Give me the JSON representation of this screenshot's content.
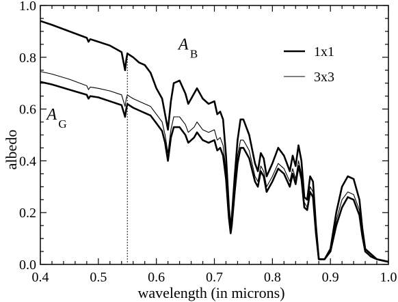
{
  "chart_data": {
    "type": "line",
    "xlabel": "wavelength (in microns)",
    "ylabel": "albedo",
    "xlim": [
      0.4,
      1.0
    ],
    "ylim": [
      0.0,
      1.0
    ],
    "x_ticks": [
      0.4,
      0.5,
      0.6,
      0.7,
      0.8,
      0.9,
      1.0
    ],
    "x_tick_labels": [
      "0.4",
      "0.5",
      "0.6",
      "0.7",
      "0.8",
      "0.9",
      "1.0"
    ],
    "y_ticks": [
      0.0,
      0.2,
      0.4,
      0.6,
      0.8,
      1.0
    ],
    "y_tick_labels": [
      "0.0",
      "0.2",
      "0.4",
      "0.6",
      "0.8",
      "1.0"
    ],
    "grid": false,
    "legend_position": "top-right",
    "reference_line": {
      "x": 0.55,
      "style": "dotted"
    },
    "annotations": [
      {
        "main": "A",
        "sub": "B",
        "x": 0.638,
        "y": 0.83
      },
      {
        "main": "A",
        "sub": "G",
        "x": 0.411,
        "y": 0.56
      }
    ],
    "series": [
      {
        "name": "1x1",
        "curve": "A_B",
        "style": "thick",
        "x": [
          0.4,
          0.42,
          0.45,
          0.48,
          0.483,
          0.486,
          0.5,
          0.52,
          0.54,
          0.546,
          0.548,
          0.55,
          0.553,
          0.56,
          0.57,
          0.58,
          0.59,
          0.6,
          0.61,
          0.615,
          0.62,
          0.625,
          0.63,
          0.64,
          0.65,
          0.655,
          0.66,
          0.665,
          0.67,
          0.68,
          0.69,
          0.7,
          0.705,
          0.71,
          0.715,
          0.72,
          0.725,
          0.728,
          0.73,
          0.735,
          0.74,
          0.745,
          0.75,
          0.76,
          0.77,
          0.775,
          0.78,
          0.785,
          0.79,
          0.8,
          0.81,
          0.82,
          0.83,
          0.835,
          0.84,
          0.845,
          0.85,
          0.855,
          0.86,
          0.865,
          0.87,
          0.875,
          0.88,
          0.885,
          0.89,
          0.9,
          0.91,
          0.92,
          0.93,
          0.94,
          0.95,
          0.955,
          0.96,
          0.965,
          0.97,
          0.98,
          0.99,
          1.0
        ],
        "y": [
          0.94,
          0.925,
          0.9,
          0.875,
          0.86,
          0.87,
          0.86,
          0.845,
          0.82,
          0.75,
          0.79,
          0.815,
          0.81,
          0.8,
          0.78,
          0.77,
          0.74,
          0.68,
          0.64,
          0.58,
          0.52,
          0.63,
          0.7,
          0.71,
          0.66,
          0.62,
          0.64,
          0.66,
          0.68,
          0.64,
          0.62,
          0.63,
          0.58,
          0.59,
          0.56,
          0.42,
          0.22,
          0.14,
          0.18,
          0.34,
          0.48,
          0.56,
          0.56,
          0.5,
          0.39,
          0.36,
          0.43,
          0.41,
          0.34,
          0.39,
          0.45,
          0.42,
          0.36,
          0.42,
          0.38,
          0.46,
          0.4,
          0.26,
          0.25,
          0.34,
          0.32,
          0.15,
          0.02,
          0.02,
          0.02,
          0.06,
          0.2,
          0.3,
          0.34,
          0.33,
          0.25,
          0.14,
          0.06,
          0.05,
          0.04,
          0.02,
          0.015,
          0.01
        ]
      },
      {
        "name": "3x3",
        "curve": "A_B",
        "style": "thin",
        "x": [
          0.4,
          0.42,
          0.45,
          0.48,
          0.483,
          0.486,
          0.5,
          0.52,
          0.54,
          0.546,
          0.548,
          0.55,
          0.553,
          0.56,
          0.57,
          0.58,
          0.59,
          0.6,
          0.61,
          0.615,
          0.62,
          0.625,
          0.63,
          0.64,
          0.65,
          0.655,
          0.66,
          0.665,
          0.67,
          0.68,
          0.69,
          0.7,
          0.705,
          0.71,
          0.715,
          0.72,
          0.725,
          0.728,
          0.73,
          0.735,
          0.74,
          0.745,
          0.75,
          0.76,
          0.77,
          0.775,
          0.78,
          0.785,
          0.79,
          0.8,
          0.81,
          0.82,
          0.83,
          0.835,
          0.84,
          0.845,
          0.85,
          0.855,
          0.86,
          0.865,
          0.87,
          0.875,
          0.88,
          0.885,
          0.89,
          0.9,
          0.91,
          0.92,
          0.93,
          0.94,
          0.95,
          0.955,
          0.96,
          0.965,
          0.97,
          0.98,
          0.99,
          1.0
        ],
        "y": [
          0.745,
          0.735,
          0.715,
          0.69,
          0.675,
          0.685,
          0.68,
          0.67,
          0.655,
          0.61,
          0.64,
          0.655,
          0.65,
          0.64,
          0.63,
          0.62,
          0.61,
          0.58,
          0.55,
          0.5,
          0.43,
          0.52,
          0.57,
          0.57,
          0.54,
          0.51,
          0.52,
          0.53,
          0.55,
          0.52,
          0.51,
          0.52,
          0.48,
          0.49,
          0.46,
          0.36,
          0.2,
          0.13,
          0.16,
          0.3,
          0.42,
          0.48,
          0.48,
          0.44,
          0.34,
          0.32,
          0.38,
          0.36,
          0.3,
          0.34,
          0.39,
          0.37,
          0.32,
          0.37,
          0.33,
          0.4,
          0.35,
          0.24,
          0.22,
          0.3,
          0.28,
          0.13,
          0.02,
          0.02,
          0.02,
          0.05,
          0.17,
          0.25,
          0.28,
          0.27,
          0.21,
          0.12,
          0.05,
          0.04,
          0.03,
          0.02,
          0.015,
          0.01
        ]
      },
      {
        "name": "",
        "curve": "A_G",
        "style": "thick",
        "x": [
          0.4,
          0.42,
          0.45,
          0.48,
          0.483,
          0.486,
          0.5,
          0.52,
          0.54,
          0.546,
          0.548,
          0.55,
          0.553,
          0.56,
          0.57,
          0.58,
          0.59,
          0.6,
          0.61,
          0.615,
          0.62,
          0.625,
          0.63,
          0.64,
          0.65,
          0.655,
          0.66,
          0.665,
          0.67,
          0.68,
          0.69,
          0.7,
          0.705,
          0.71,
          0.715,
          0.72,
          0.725,
          0.728,
          0.73,
          0.735,
          0.74,
          0.745,
          0.75,
          0.76,
          0.77,
          0.775,
          0.78,
          0.785,
          0.79,
          0.8,
          0.81,
          0.82,
          0.83,
          0.835,
          0.84,
          0.845,
          0.85,
          0.855,
          0.86,
          0.865,
          0.87,
          0.875,
          0.88,
          0.885,
          0.89,
          0.9,
          0.91,
          0.92,
          0.93,
          0.94,
          0.95,
          0.955,
          0.96,
          0.965,
          0.97,
          0.98,
          0.99,
          1.0
        ],
        "y": [
          0.705,
          0.695,
          0.675,
          0.655,
          0.64,
          0.65,
          0.645,
          0.63,
          0.615,
          0.57,
          0.6,
          0.62,
          0.615,
          0.605,
          0.595,
          0.585,
          0.575,
          0.545,
          0.515,
          0.47,
          0.4,
          0.49,
          0.53,
          0.53,
          0.5,
          0.47,
          0.48,
          0.49,
          0.51,
          0.48,
          0.47,
          0.48,
          0.44,
          0.45,
          0.42,
          0.33,
          0.18,
          0.12,
          0.15,
          0.28,
          0.39,
          0.45,
          0.45,
          0.41,
          0.32,
          0.3,
          0.36,
          0.34,
          0.28,
          0.32,
          0.37,
          0.35,
          0.3,
          0.35,
          0.31,
          0.38,
          0.33,
          0.22,
          0.21,
          0.28,
          0.26,
          0.12,
          0.02,
          0.02,
          0.02,
          0.05,
          0.15,
          0.22,
          0.26,
          0.25,
          0.19,
          0.11,
          0.05,
          0.04,
          0.03,
          0.02,
          0.015,
          0.01
        ]
      }
    ]
  }
}
